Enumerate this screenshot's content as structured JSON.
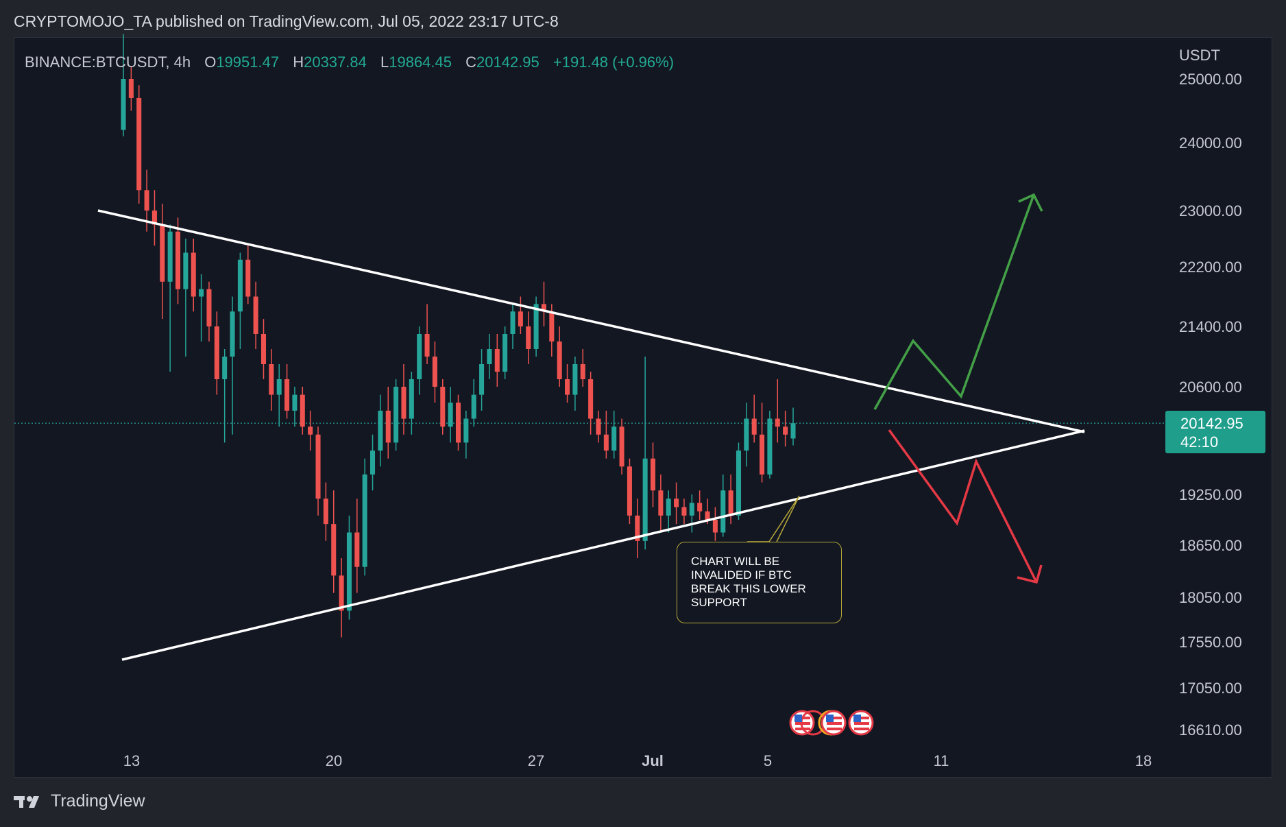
{
  "publisher_line": "CRYPTOMOJO_TA published on TradingView.com, Jul 05, 2022 23:17 UTC-8",
  "symbol": "BINANCE:BTCUSDT, 4h",
  "ohlc": {
    "o_label": "O",
    "o": "19951.47",
    "h_label": "H",
    "h": "20337.84",
    "l_label": "L",
    "l": "19864.45",
    "c_label": "C",
    "c": "20142.95",
    "change": "+191.48 (+0.96%)"
  },
  "currency": "USDT",
  "last_price": {
    "price": "20142.95",
    "countdown": "42:10"
  },
  "annotation": {
    "lines": [
      "CHART WILL BE",
      "INVALIDED IF BTC",
      "BREAK THIS LOWER",
      "SUPPORT"
    ]
  },
  "brand": "TradingView",
  "colors": {
    "up": "#26a69a",
    "down": "#ef5350",
    "bullish_arrow": "#43a047",
    "bearish_arrow": "#e53945",
    "trendline": "#ffffff",
    "background": "#131722"
  },
  "chart_data": {
    "type": "candlestick",
    "y_axis_labels": [
      "25000.00",
      "24000.00",
      "23000.00",
      "22200.00",
      "21400.00",
      "20600.00",
      "19250.00",
      "18650.00",
      "18050.00",
      "17550.00",
      "17050.00",
      "16610.00"
    ],
    "x_axis_labels": [
      "13",
      "20",
      "27",
      "Jul",
      "5",
      "11",
      "18"
    ],
    "last_price_line": 20142.95,
    "candles": [
      {
        "o": 24200,
        "h": 25700,
        "l": 24100,
        "c": 25000
      },
      {
        "o": 25000,
        "h": 25200,
        "l": 24500,
        "c": 24700
      },
      {
        "o": 24700,
        "h": 24900,
        "l": 23100,
        "c": 23300
      },
      {
        "o": 23300,
        "h": 23600,
        "l": 22700,
        "c": 23000
      },
      {
        "o": 23000,
        "h": 23300,
        "l": 22500,
        "c": 22800
      },
      {
        "o": 22800,
        "h": 23100,
        "l": 21500,
        "c": 22000
      },
      {
        "o": 22000,
        "h": 22800,
        "l": 20800,
        "c": 22700
      },
      {
        "o": 22700,
        "h": 22900,
        "l": 21700,
        "c": 21900
      },
      {
        "o": 21900,
        "h": 22600,
        "l": 21000,
        "c": 22400
      },
      {
        "o": 22400,
        "h": 22600,
        "l": 21600,
        "c": 21800
      },
      {
        "o": 21800,
        "h": 22100,
        "l": 21200,
        "c": 21900
      },
      {
        "o": 21900,
        "h": 22000,
        "l": 21200,
        "c": 21400
      },
      {
        "o": 21400,
        "h": 21600,
        "l": 20500,
        "c": 20700
      },
      {
        "o": 20700,
        "h": 21100,
        "l": 19900,
        "c": 21000
      },
      {
        "o": 21000,
        "h": 21800,
        "l": 20000,
        "c": 21600
      },
      {
        "o": 21600,
        "h": 22400,
        "l": 21100,
        "c": 22300
      },
      {
        "o": 22300,
        "h": 22500,
        "l": 21700,
        "c": 21800
      },
      {
        "o": 21800,
        "h": 22000,
        "l": 21100,
        "c": 21300
      },
      {
        "o": 21300,
        "h": 21500,
        "l": 20700,
        "c": 20900
      },
      {
        "o": 20900,
        "h": 21100,
        "l": 20300,
        "c": 20500
      },
      {
        "o": 20500,
        "h": 20900,
        "l": 20100,
        "c": 20700
      },
      {
        "o": 20700,
        "h": 20900,
        "l": 20200,
        "c": 20300
      },
      {
        "o": 20300,
        "h": 20600,
        "l": 20100,
        "c": 20500
      },
      {
        "o": 20500,
        "h": 20600,
        "l": 20000,
        "c": 20100
      },
      {
        "o": 20100,
        "h": 20300,
        "l": 19800,
        "c": 20000
      },
      {
        "o": 20000,
        "h": 20100,
        "l": 19000,
        "c": 19200
      },
      {
        "o": 19200,
        "h": 19400,
        "l": 18700,
        "c": 18900
      },
      {
        "o": 18900,
        "h": 19300,
        "l": 18100,
        "c": 18300
      },
      {
        "o": 18300,
        "h": 18500,
        "l": 17600,
        "c": 17900
      },
      {
        "o": 17900,
        "h": 19000,
        "l": 17800,
        "c": 18800
      },
      {
        "o": 18800,
        "h": 19200,
        "l": 18100,
        "c": 18400
      },
      {
        "o": 18400,
        "h": 19700,
        "l": 18300,
        "c": 19500
      },
      {
        "o": 19500,
        "h": 20000,
        "l": 19300,
        "c": 19800
      },
      {
        "o": 19800,
        "h": 20500,
        "l": 19600,
        "c": 20300
      },
      {
        "o": 20300,
        "h": 20600,
        "l": 19700,
        "c": 19900
      },
      {
        "o": 19900,
        "h": 20700,
        "l": 19800,
        "c": 20600
      },
      {
        "o": 20600,
        "h": 20900,
        "l": 20000,
        "c": 20200
      },
      {
        "o": 20200,
        "h": 20800,
        "l": 20000,
        "c": 20700
      },
      {
        "o": 20700,
        "h": 21400,
        "l": 20500,
        "c": 21300
      },
      {
        "o": 21300,
        "h": 21700,
        "l": 20900,
        "c": 21000
      },
      {
        "o": 21000,
        "h": 21200,
        "l": 20400,
        "c": 20600
      },
      {
        "o": 20600,
        "h": 20700,
        "l": 20000,
        "c": 20100
      },
      {
        "o": 20100,
        "h": 20600,
        "l": 19900,
        "c": 20400
      },
      {
        "o": 20400,
        "h": 20500,
        "l": 19800,
        "c": 19900
      },
      {
        "o": 19900,
        "h": 20300,
        "l": 19700,
        "c": 20200
      },
      {
        "o": 20200,
        "h": 20700,
        "l": 20100,
        "c": 20500
      },
      {
        "o": 20500,
        "h": 21100,
        "l": 20300,
        "c": 20900
      },
      {
        "o": 20900,
        "h": 21300,
        "l": 20700,
        "c": 21100
      },
      {
        "o": 21100,
        "h": 21300,
        "l": 20600,
        "c": 20800
      },
      {
        "o": 20800,
        "h": 21400,
        "l": 20700,
        "c": 21300
      },
      {
        "o": 21300,
        "h": 21700,
        "l": 21100,
        "c": 21600
      },
      {
        "o": 21600,
        "h": 21800,
        "l": 21300,
        "c": 21400
      },
      {
        "o": 21400,
        "h": 21600,
        "l": 20900,
        "c": 21100
      },
      {
        "o": 21100,
        "h": 21800,
        "l": 21000,
        "c": 21700
      },
      {
        "o": 21700,
        "h": 22000,
        "l": 21400,
        "c": 21600
      },
      {
        "o": 21600,
        "h": 21700,
        "l": 21000,
        "c": 21200
      },
      {
        "o": 21200,
        "h": 21400,
        "l": 20600,
        "c": 20700
      },
      {
        "o": 20700,
        "h": 20900,
        "l": 20400,
        "c": 20500
      },
      {
        "o": 20500,
        "h": 21000,
        "l": 20300,
        "c": 20900
      },
      {
        "o": 20900,
        "h": 21100,
        "l": 20600,
        "c": 20700
      },
      {
        "o": 20700,
        "h": 20800,
        "l": 20000,
        "c": 20200
      },
      {
        "o": 20200,
        "h": 20300,
        "l": 19900,
        "c": 20000
      },
      {
        "o": 20000,
        "h": 20300,
        "l": 19700,
        "c": 19800
      },
      {
        "o": 19800,
        "h": 20300,
        "l": 19700,
        "c": 20100
      },
      {
        "o": 20100,
        "h": 20200,
        "l": 19500,
        "c": 19600
      },
      {
        "o": 19600,
        "h": 19700,
        "l": 18900,
        "c": 19000
      },
      {
        "o": 19000,
        "h": 19200,
        "l": 18500,
        "c": 18700
      },
      {
        "o": 18700,
        "h": 21000,
        "l": 18600,
        "c": 19700
      },
      {
        "o": 19700,
        "h": 19900,
        "l": 19100,
        "c": 19300
      },
      {
        "o": 19300,
        "h": 19500,
        "l": 18800,
        "c": 19000
      },
      {
        "o": 19000,
        "h": 19300,
        "l": 18800,
        "c": 19200
      },
      {
        "o": 19200,
        "h": 19400,
        "l": 18900,
        "c": 19100
      },
      {
        "o": 19100,
        "h": 19200,
        "l": 18900,
        "c": 19000
      },
      {
        "o": 19000,
        "h": 19250,
        "l": 18800,
        "c": 19150
      },
      {
        "o": 19150,
        "h": 19300,
        "l": 18950,
        "c": 19050
      },
      {
        "o": 19050,
        "h": 19200,
        "l": 18900,
        "c": 18950
      },
      {
        "o": 18950,
        "h": 19100,
        "l": 18700,
        "c": 18800
      },
      {
        "o": 18800,
        "h": 19500,
        "l": 18750,
        "c": 19300
      },
      {
        "o": 19300,
        "h": 19500,
        "l": 18900,
        "c": 19000
      },
      {
        "o": 19000,
        "h": 19900,
        "l": 18950,
        "c": 19800
      },
      {
        "o": 19800,
        "h": 20400,
        "l": 19600,
        "c": 20200
      },
      {
        "o": 20200,
        "h": 20500,
        "l": 19900,
        "c": 20000
      },
      {
        "o": 20000,
        "h": 20400,
        "l": 19400,
        "c": 19500
      },
      {
        "o": 19500,
        "h": 20300,
        "l": 19450,
        "c": 20200
      },
      {
        "o": 20200,
        "h": 20700,
        "l": 19900,
        "c": 20100
      },
      {
        "o": 20100,
        "h": 20300,
        "l": 19850,
        "c": 20000
      },
      {
        "o": 19951.47,
        "h": 20337.84,
        "l": 19864.45,
        "c": 20142.95
      }
    ]
  }
}
